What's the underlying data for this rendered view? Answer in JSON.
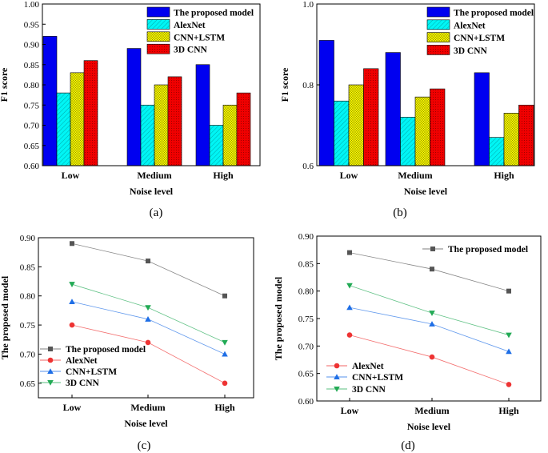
{
  "colors": {
    "The proposed model": "#0000f0",
    "AlexNet": "#00f5f5",
    "CNN+LSTM": "#f5f500",
    "3D CNN": "#f00000",
    "line_proposed": "#555555",
    "line_alexnet": "#ee3333",
    "line_cnnlstm": "#1e6ee6",
    "line_3dcnn": "#22aa55"
  },
  "chart_data": [
    {
      "id": "a",
      "type": "bar",
      "caption": "(a)",
      "categories": [
        "Low",
        "Medium",
        "High"
      ],
      "xlabel": "Noise level",
      "ylabel": "F1 score",
      "ylim": [
        0.6,
        1.0
      ],
      "yticks": [
        "0.60",
        "0.65",
        "0.70",
        "0.75",
        "0.80",
        "0.85",
        "0.90",
        "0.95",
        "1.00"
      ],
      "series": [
        {
          "name": "The proposed model",
          "values": [
            0.92,
            0.89,
            0.85
          ]
        },
        {
          "name": "AlexNet",
          "values": [
            0.78,
            0.75,
            0.7
          ]
        },
        {
          "name": "CNN+LSTM",
          "values": [
            0.83,
            0.8,
            0.75
          ]
        },
        {
          "name": "3D CNN",
          "values": [
            0.86,
            0.82,
            0.78
          ]
        }
      ],
      "legend": "top-right"
    },
    {
      "id": "b",
      "type": "bar",
      "caption": "(b)",
      "categories": [
        "Low",
        "Medium",
        "High"
      ],
      "xlabel": "Noise level",
      "ylabel": "F1 score",
      "ylim": [
        0.6,
        1.0
      ],
      "yticks": [
        "0.6",
        "0.8",
        "1.0"
      ],
      "series": [
        {
          "name": "The proposed model",
          "values": [
            0.91,
            0.88,
            0.83
          ]
        },
        {
          "name": "AlexNet",
          "values": [
            0.76,
            0.72,
            0.67
          ]
        },
        {
          "name": "CNN+LSTM",
          "values": [
            0.8,
            0.77,
            0.73
          ]
        },
        {
          "name": "3D CNN",
          "values": [
            0.84,
            0.79,
            0.75
          ]
        }
      ],
      "legend": "top-right"
    },
    {
      "id": "c",
      "type": "line",
      "caption": "(c)",
      "categories": [
        "Low",
        "Medium",
        "High"
      ],
      "xlabel": "Noise level",
      "ylabel": "The proposed model",
      "ylim": [
        0.625,
        0.9
      ],
      "yticks": [
        "0.65",
        "0.70",
        "0.75",
        "0.80",
        "0.85",
        "0.90"
      ],
      "series": [
        {
          "name": "The proposed model",
          "values": [
            0.89,
            0.86,
            0.8
          ]
        },
        {
          "name": "AlexNet",
          "values": [
            0.75,
            0.72,
            0.65
          ]
        },
        {
          "name": "CNN+LSTM",
          "values": [
            0.79,
            0.76,
            0.7
          ]
        },
        {
          "name": "3D CNN",
          "values": [
            0.82,
            0.78,
            0.72
          ]
        }
      ],
      "legend": "lower-left"
    },
    {
      "id": "d",
      "type": "line",
      "caption": "(d)",
      "categories": [
        "Low",
        "Medium",
        "High"
      ],
      "xlabel": "Noise level",
      "ylabel": "The proposed model",
      "ylim": [
        0.6,
        0.9
      ],
      "yticks": [
        "0.60",
        "0.65",
        "0.70",
        "0.75",
        "0.80",
        "0.85",
        "0.90"
      ],
      "series": [
        {
          "name": "The proposed model",
          "values": [
            0.87,
            0.84,
            0.8
          ]
        },
        {
          "name": "AlexNet",
          "values": [
            0.72,
            0.68,
            0.63
          ]
        },
        {
          "name": "CNN+LSTM",
          "values": [
            0.77,
            0.74,
            0.69
          ]
        },
        {
          "name": "3D CNN",
          "values": [
            0.81,
            0.76,
            0.72
          ]
        }
      ],
      "legend": "split: top-center and lower-left"
    }
  ]
}
